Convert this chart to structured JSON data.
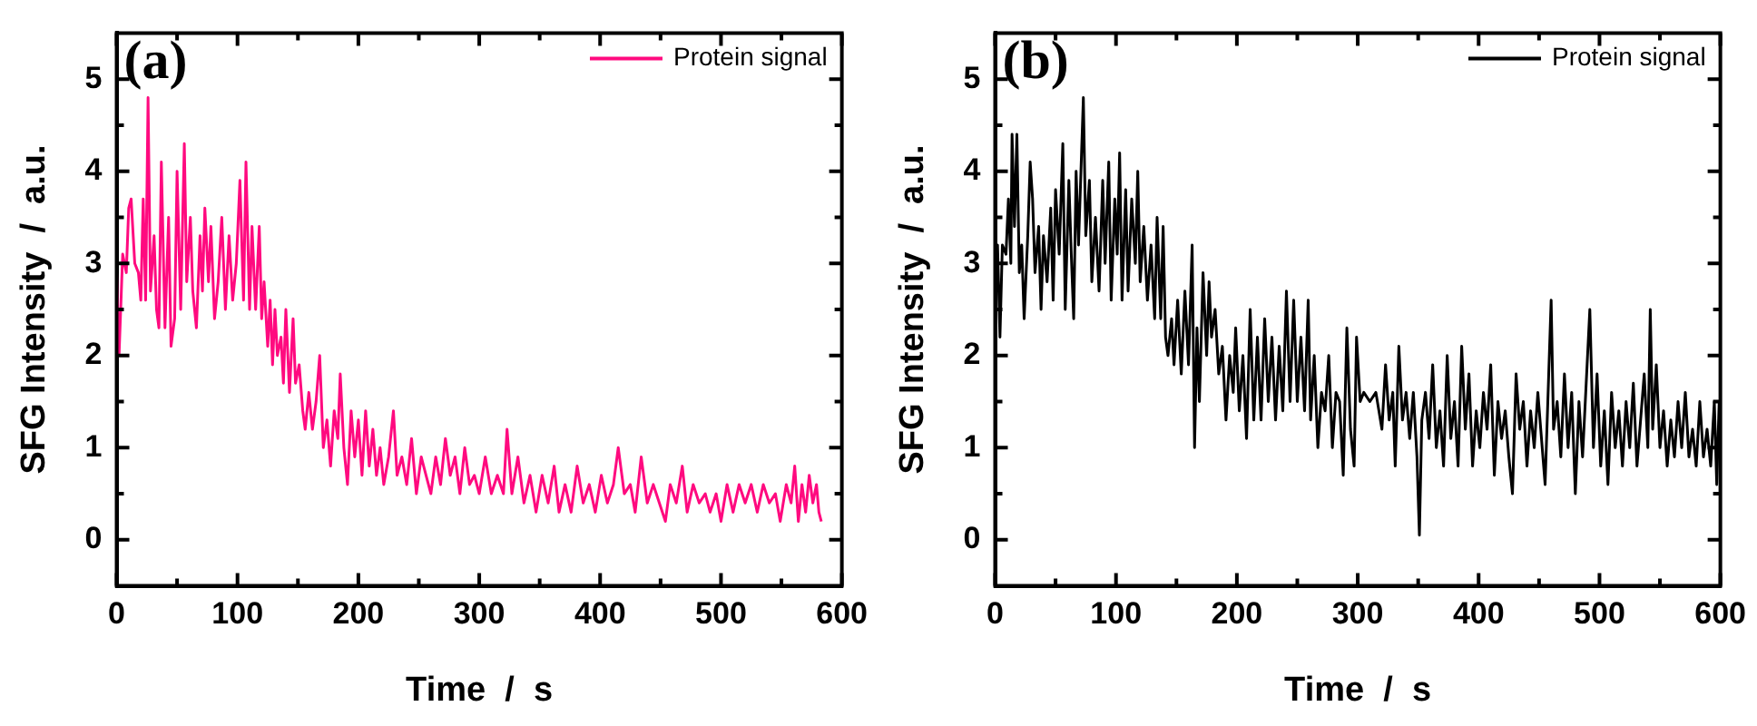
{
  "chart_data": [
    {
      "type": "line",
      "title": "(a)",
      "xlabel": "Time  /  s",
      "ylabel": "SFG Intensity  /  a.u.",
      "legend": "top right",
      "marker": "none",
      "line_style": "solid",
      "xlim": [
        0,
        600
      ],
      "xticks": [
        0,
        {
          "value": 50,
          "label": null
        },
        100,
        {
          "value": 150,
          "label": null
        },
        200,
        {
          "value": 250,
          "label": null
        },
        300,
        {
          "value": 350,
          "label": null
        },
        400,
        {
          "value": 450,
          "label": null
        },
        500,
        {
          "value": 550,
          "label": null
        },
        600
      ],
      "ylim": [
        -0.5,
        5.5
      ],
      "yticks": [
        0,
        {
          "value": 0.5,
          "label": null
        },
        1,
        {
          "value": 1.5,
          "label": null
        },
        2,
        {
          "value": 2.5,
          "label": null
        },
        3,
        {
          "value": 3.5,
          "label": null
        },
        4,
        {
          "value": 4.5,
          "label": null
        },
        5
      ],
      "series": [
        {
          "name": "Protein signal",
          "color": "#ff0a7f",
          "x": [
            0,
            2,
            5,
            8,
            10,
            12,
            15,
            18,
            20,
            22,
            24,
            26,
            28,
            31,
            33,
            35,
            37,
            40,
            43,
            45,
            48,
            50,
            53,
            56,
            58,
            61,
            63,
            66,
            69,
            71,
            73,
            76,
            78,
            81,
            84,
            87,
            90,
            93,
            96,
            99,
            102,
            105,
            107,
            110,
            112,
            115,
            118,
            120,
            122,
            125,
            127,
            129,
            131,
            133,
            136,
            138,
            140,
            143,
            146,
            148,
            151,
            154,
            156,
            159,
            162,
            165,
            168,
            171,
            174,
            177,
            180,
            183,
            185,
            188,
            191,
            194,
            197,
            200,
            203,
            206,
            209,
            212,
            215,
            218,
            221,
            225,
            229,
            232,
            236,
            240,
            244,
            248,
            252,
            256,
            260,
            264,
            268,
            272,
            276,
            280,
            284,
            288,
            292,
            296,
            300,
            305,
            310,
            315,
            320,
            323,
            327,
            332,
            337,
            342,
            347,
            352,
            357,
            362,
            366,
            371,
            376,
            381,
            386,
            391,
            396,
            401,
            406,
            411,
            415,
            420,
            425,
            429,
            434,
            439,
            444,
            449,
            454,
            458,
            463,
            468,
            472,
            477,
            482,
            487,
            491,
            496,
            500,
            505,
            510,
            515,
            520,
            525,
            530,
            535,
            540,
            545,
            549,
            554,
            558,
            561,
            564,
            567,
            570,
            573,
            576,
            579,
            581,
            583
          ],
          "values": [
            2.9,
            2.0,
            3.1,
            2.9,
            3.6,
            3.7,
            3.0,
            2.9,
            2.6,
            3.7,
            2.6,
            4.8,
            2.7,
            3.3,
            2.5,
            2.3,
            4.1,
            2.3,
            3.5,
            2.1,
            2.4,
            4.0,
            2.5,
            4.3,
            2.8,
            3.5,
            2.7,
            2.3,
            3.3,
            2.7,
            3.6,
            2.8,
            3.4,
            2.4,
            2.8,
            3.5,
            2.5,
            3.3,
            2.6,
            3.0,
            3.9,
            2.6,
            4.1,
            2.5,
            3.4,
            2.5,
            3.4,
            2.4,
            2.8,
            2.1,
            2.6,
            1.9,
            2.5,
            2.0,
            2.2,
            1.7,
            2.5,
            1.6,
            2.4,
            1.7,
            1.9,
            1.4,
            1.2,
            1.6,
            1.2,
            1.5,
            2.0,
            1.0,
            1.3,
            0.8,
            1.4,
            1.1,
            1.8,
            1.0,
            0.6,
            1.4,
            0.9,
            1.3,
            0.7,
            1.4,
            0.8,
            1.2,
            0.7,
            1.0,
            0.6,
            0.9,
            1.4,
            0.7,
            0.9,
            0.6,
            1.1,
            0.5,
            0.9,
            0.7,
            0.5,
            0.9,
            0.6,
            1.1,
            0.7,
            0.9,
            0.5,
            1.0,
            0.6,
            0.7,
            0.5,
            0.9,
            0.5,
            0.7,
            0.5,
            1.2,
            0.5,
            0.9,
            0.4,
            0.7,
            0.3,
            0.7,
            0.4,
            0.8,
            0.3,
            0.6,
            0.3,
            0.8,
            0.4,
            0.6,
            0.3,
            0.7,
            0.4,
            0.6,
            1.0,
            0.5,
            0.6,
            0.3,
            0.9,
            0.4,
            0.6,
            0.4,
            0.2,
            0.6,
            0.4,
            0.8,
            0.3,
            0.6,
            0.4,
            0.5,
            0.3,
            0.5,
            0.2,
            0.6,
            0.3,
            0.6,
            0.4,
            0.6,
            0.3,
            0.6,
            0.4,
            0.5,
            0.2,
            0.6,
            0.4,
            0.8,
            0.2,
            0.6,
            0.3,
            0.7,
            0.4,
            0.6,
            0.3,
            0.2
          ]
        }
      ]
    },
    {
      "type": "line",
      "title": "(b)",
      "xlabel": "Time  /  s",
      "ylabel": "SFG Intensity  /  a.u.",
      "legend": "top right",
      "marker": "none",
      "line_style": "solid",
      "xlim": [
        0,
        600
      ],
      "xticks": [
        0,
        {
          "value": 50,
          "label": null
        },
        100,
        {
          "value": 150,
          "label": null
        },
        200,
        {
          "value": 250,
          "label": null
        },
        300,
        {
          "value": 350,
          "label": null
        },
        400,
        {
          "value": 450,
          "label": null
        },
        500,
        {
          "value": 550,
          "label": null
        },
        600
      ],
      "ylim": [
        -0.5,
        5.5
      ],
      "yticks": [
        0,
        {
          "value": 0.5,
          "label": null
        },
        1,
        {
          "value": 1.5,
          "label": null
        },
        2,
        {
          "value": 2.5,
          "label": null
        },
        3,
        {
          "value": 3.5,
          "label": null
        },
        4,
        {
          "value": 4.5,
          "label": null
        },
        5
      ],
      "series": [
        {
          "name": "Protein signal",
          "color": "#000000",
          "x": [
            0,
            2,
            4,
            6,
            9,
            11,
            13,
            14,
            16,
            18,
            20,
            22,
            24,
            27,
            29,
            31,
            33,
            36,
            38,
            40,
            43,
            46,
            48,
            50,
            53,
            56,
            58,
            61,
            63,
            65,
            67,
            69,
            71,
            73,
            75,
            78,
            80,
            83,
            86,
            89,
            91,
            94,
            96,
            99,
            101,
            103,
            105,
            108,
            110,
            113,
            116,
            118,
            120,
            123,
            126,
            129,
            132,
            134,
            137,
            139,
            141,
            143,
            146,
            148,
            151,
            154,
            157,
            160,
            163,
            165,
            167,
            169,
            172,
            175,
            177,
            179,
            182,
            185,
            188,
            191,
            194,
            197,
            199,
            202,
            205,
            208,
            211,
            214,
            217,
            220,
            223,
            226,
            229,
            232,
            235,
            238,
            241,
            244,
            247,
            250,
            253,
            256,
            259,
            261,
            264,
            267,
            270,
            273,
            276,
            279,
            282,
            285,
            288,
            291,
            294,
            297,
            299,
            302,
            305,
            310,
            315,
            320,
            323,
            326,
            329,
            331,
            334,
            337,
            340,
            343,
            346,
            349,
            351,
            353,
            356,
            359,
            362,
            365,
            368,
            371,
            374,
            377,
            380,
            383,
            386,
            389,
            392,
            395,
            398,
            401,
            404,
            407,
            410,
            413,
            416,
            419,
            422,
            425,
            428,
            431,
            434,
            437,
            440,
            443,
            446,
            449,
            452,
            455,
            458,
            460,
            462,
            465,
            468,
            471,
            474,
            477,
            480,
            483,
            486,
            489,
            492,
            495,
            498,
            501,
            504,
            507,
            510,
            513,
            516,
            519,
            522,
            525,
            528,
            531,
            534,
            537,
            540,
            542,
            544,
            547,
            550,
            553,
            556,
            559,
            562,
            565,
            568,
            571,
            574,
            577,
            580,
            583,
            586,
            589,
            592,
            595,
            597,
            599
          ],
          "values": [
            2.5,
            3.2,
            2.2,
            3.2,
            3.1,
            3.7,
            3.0,
            4.4,
            3.4,
            4.4,
            2.9,
            3.2,
            2.4,
            3.3,
            4.1,
            3.7,
            2.9,
            3.4,
            2.5,
            3.3,
            2.8,
            3.6,
            2.6,
            3.8,
            3.1,
            4.3,
            2.5,
            3.9,
            3.1,
            2.4,
            4.0,
            3.2,
            4.0,
            4.8,
            3.3,
            3.9,
            2.8,
            3.5,
            2.7,
            3.9,
            3.0,
            4.1,
            2.6,
            3.7,
            3.1,
            4.2,
            2.6,
            3.8,
            2.7,
            3.7,
            3.0,
            4.0,
            2.8,
            3.4,
            2.6,
            3.2,
            2.4,
            3.5,
            2.4,
            3.4,
            2.2,
            2.0,
            2.4,
            1.9,
            2.6,
            1.8,
            2.7,
            1.9,
            3.2,
            1.0,
            2.3,
            1.5,
            2.9,
            2.0,
            2.8,
            2.2,
            2.5,
            1.8,
            2.1,
            1.3,
            2.0,
            1.6,
            2.3,
            1.4,
            2.0,
            1.1,
            2.5,
            1.3,
            2.2,
            1.3,
            2.4,
            1.5,
            2.2,
            1.3,
            2.1,
            1.4,
            2.7,
            1.5,
            2.6,
            1.5,
            2.2,
            1.4,
            2.6,
            1.3,
            2.0,
            1.0,
            1.6,
            1.4,
            2.0,
            1.0,
            1.6,
            1.5,
            0.7,
            2.3,
            1.2,
            0.8,
            2.2,
            1.5,
            1.6,
            1.5,
            1.6,
            1.2,
            1.9,
            1.3,
            1.6,
            0.8,
            2.1,
            1.3,
            1.6,
            1.1,
            1.6,
            0.9,
            0.05,
            1.3,
            1.6,
            1.1,
            1.9,
            1.0,
            1.4,
            0.8,
            2.0,
            1.1,
            1.5,
            0.8,
            2.1,
            1.2,
            1.8,
            0.8,
            1.4,
            1.0,
            1.6,
            1.2,
            1.9,
            0.7,
            1.5,
            1.1,
            1.4,
            0.9,
            0.5,
            1.8,
            1.2,
            1.5,
            0.8,
            1.4,
            1.0,
            1.6,
            1.1,
            0.6,
            1.8,
            2.6,
            1.2,
            1.5,
            0.9,
            1.8,
            1.0,
            1.6,
            0.5,
            1.5,
            0.9,
            1.7,
            2.5,
            1.0,
            1.8,
            0.8,
            1.4,
            0.6,
            1.6,
            1.0,
            1.4,
            0.8,
            1.5,
            1.0,
            1.7,
            0.8,
            1.3,
            1.8,
            1.0,
            2.5,
            1.2,
            1.9,
            1.0,
            1.4,
            0.8,
            1.3,
            0.9,
            1.5,
            1.0,
            1.6,
            0.9,
            1.2,
            0.8,
            1.5,
            0.9,
            1.2,
            0.8,
            1.5,
            0.6,
            1.5
          ]
        }
      ]
    }
  ]
}
